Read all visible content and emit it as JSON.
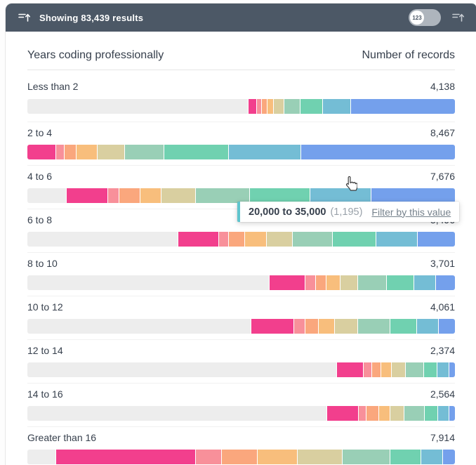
{
  "header": {
    "results_text": "Showing 83,439 results",
    "toggle_label": "123"
  },
  "icons": {
    "left": "sort-ascending-icon",
    "right": "sort-ascending-icon",
    "cursor": "hand-pointer-cursor"
  },
  "table": {
    "left_header": "Years coding professionally",
    "right_header": "Number of records"
  },
  "tooltip": {
    "range": "20,000 to 35,000",
    "count": "(1,195)",
    "action": "Filter by this value"
  },
  "colors": {
    "topbar_bg": "#4c5866",
    "track": "#ededed",
    "tooltip_accent": "#5fc5ce",
    "text": "#37404d",
    "muted_text": "#9aa2aa",
    "link_text": "#76828c"
  },
  "chart_data": {
    "type": "bar",
    "orientation": "horizontal-stacked",
    "title": "Years coding professionally",
    "value_axis_label": "Number of records",
    "categories": [
      "Less than 2",
      "2 to 4",
      "4 to 6",
      "6 to 8",
      "8 to 10",
      "10 to 12",
      "12 to 14",
      "14 to 16",
      "Greater than 16"
    ],
    "values": [
      4138,
      8467,
      7676,
      5496,
      3701,
      4061,
      2374,
      2564,
      7914
    ],
    "display_values": [
      "4,138",
      "8,467",
      "7,676",
      "5,496",
      "3,701",
      "4,061",
      "2,374",
      "2,564",
      "7,914"
    ],
    "segment_names": [
      "pink",
      "salmon",
      "light-orange",
      "orange",
      "tan",
      "sage",
      "mint",
      "teal",
      "blue"
    ],
    "segment_colors": [
      "#f23f8d",
      "#f8909a",
      "#faa77d",
      "#f8be7c",
      "#d9cfa0",
      "#99cfb6",
      "#70d1b0",
      "#74bdd5",
      "#74a0ec"
    ],
    "rows_segments_pct": [
      [
        2.1,
        1.1,
        1.3,
        1.5,
        2.5,
        3.8,
        5.1,
        6.6,
        24.5
      ],
      [
        6.5,
        2.0,
        2.9,
        4.9,
        6.4,
        9.1,
        15.2,
        16.9,
        36.1
      ],
      [
        9.8,
        2.6,
        4.9,
        4.9,
        8.0,
        12.7,
        14.2,
        14.2,
        19.7
      ],
      [
        9.4,
        2.4,
        3.7,
        5.1,
        6.1,
        9.4,
        10.1,
        9.8,
        8.8
      ],
      [
        8.4,
        2.4,
        2.5,
        3.2,
        4.2,
        6.7,
        6.5,
        5.0,
        4.6
      ],
      [
        10.0,
        2.6,
        3.2,
        3.7,
        5.5,
        7.6,
        6.1,
        5.2,
        3.9
      ],
      [
        6.2,
        1.9,
        2.2,
        2.4,
        3.4,
        4.2,
        3.2,
        2.7,
        1.5
      ],
      [
        7.4,
        1.8,
        2.9,
        2.7,
        3.2,
        4.7,
        3.2,
        2.7,
        1.4
      ],
      [
        32.7,
        6.2,
        8.3,
        9.4,
        10.5,
        11.1,
        7.2,
        5.1,
        3.0
      ]
    ],
    "hovered": {
      "category": "4 to 6",
      "segment": "teal",
      "segment_range": "20,000 to 35,000",
      "segment_count": "1,195"
    }
  }
}
